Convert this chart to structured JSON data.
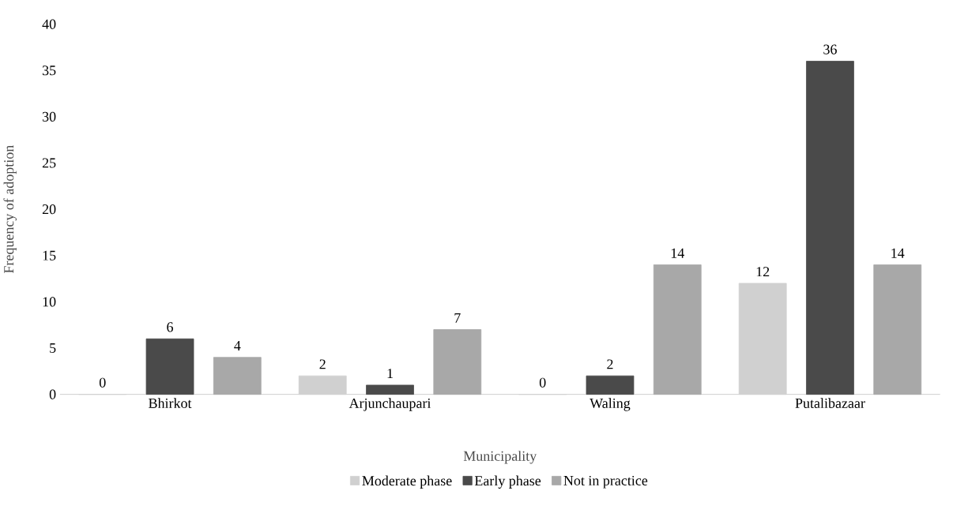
{
  "chart_data": {
    "type": "bar",
    "xlabel": "Municipality",
    "ylabel": "Frequency of adoption",
    "categories": [
      "Bhirkot",
      "Arjunchaupari",
      "Waling",
      "Putalibazaar"
    ],
    "series": [
      {
        "name": "Moderate phase",
        "color": "#d0d0d0",
        "values": [
          0,
          2,
          0,
          12
        ],
        "value_labels": [
          "0",
          "2",
          "0",
          "12"
        ]
      },
      {
        "name": "Early phase",
        "color": "#4a4a4a",
        "values": [
          6,
          1,
          2,
          36
        ],
        "value_labels": [
          "6",
          "1",
          "2",
          "36"
        ]
      },
      {
        "name": "Not in practice",
        "color": "#a8a8a8",
        "values": [
          4,
          7,
          14,
          14
        ],
        "value_labels": [
          "4",
          "7",
          "14",
          "14"
        ]
      }
    ],
    "ylim": [
      0,
      40
    ],
    "yticks": [
      0,
      5,
      10,
      15,
      20,
      25,
      30,
      35,
      40
    ],
    "legend": "bottom",
    "grid": false
  }
}
